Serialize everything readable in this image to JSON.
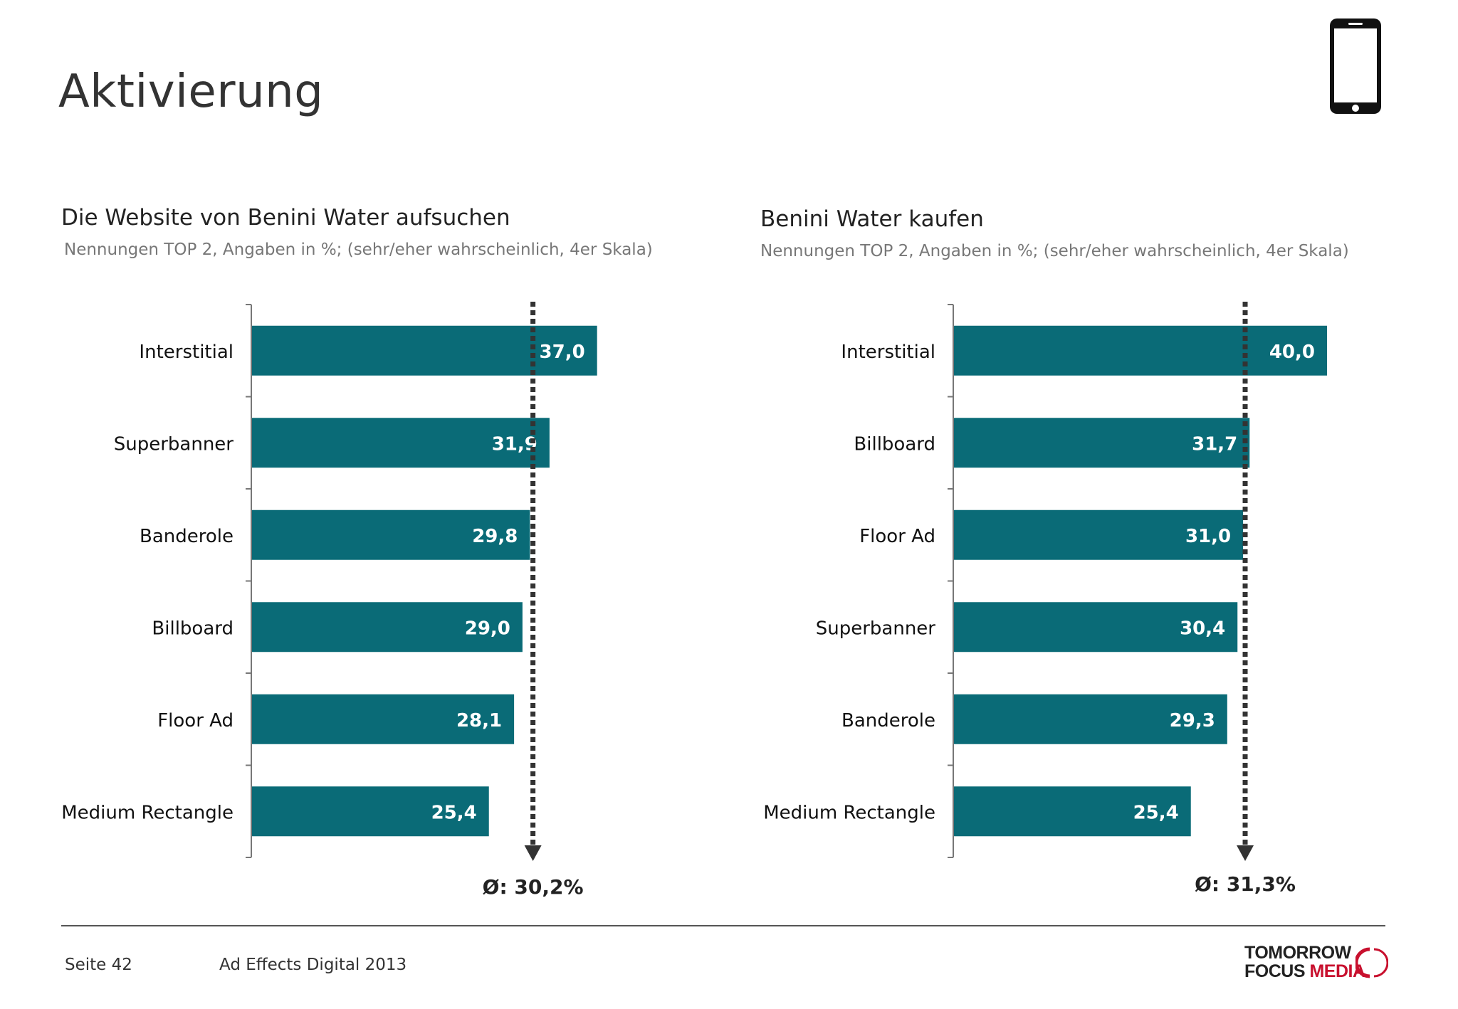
{
  "page": {
    "title": "Aktivierung",
    "icon": "smartphone-icon"
  },
  "footer": {
    "page_label": "Seite 42",
    "study": "Ad Effects Digital 2013",
    "logo_line1": "TOMORROW",
    "logo_focus": "FOCUS",
    "logo_media": "MEDIA"
  },
  "colors": {
    "bar": "#0a6b77",
    "accent": "#c8102e",
    "reference_line": "#333333"
  },
  "chart_data": [
    {
      "type": "bar",
      "orientation": "horizontal",
      "title": "Die Website von Benini Water aufsuchen",
      "subtitle": "Nennungen TOP 2, Angaben in %; (sehr/eher wahrscheinlich, 4er Skala)",
      "categories": [
        "Interstitial",
        "Superbanner",
        "Banderole",
        "Billboard",
        "Floor Ad",
        "Medium Rectangle"
      ],
      "values": [
        37.0,
        31.9,
        29.8,
        29.0,
        28.1,
        25.4
      ],
      "value_labels": [
        "37,0",
        "31,9",
        "29,8",
        "29,0",
        "28,1",
        "25,4"
      ],
      "average": 30.2,
      "average_label": "Ø: 30,2%",
      "xlim": [
        0,
        40
      ],
      "grid": false
    },
    {
      "type": "bar",
      "orientation": "horizontal",
      "title": "Benini Water kaufen",
      "subtitle": "Nennungen TOP 2, Angaben in %; (sehr/eher wahrscheinlich, 4er Skala)",
      "categories": [
        "Interstitial",
        "Billboard",
        "Floor Ad",
        "Superbanner",
        "Banderole",
        "Medium Rectangle"
      ],
      "values": [
        40.0,
        31.7,
        31.0,
        30.4,
        29.3,
        25.4
      ],
      "value_labels": [
        "40,0",
        "31,7",
        "31,0",
        "30,4",
        "29,3",
        "25,4"
      ],
      "average": 31.3,
      "average_label": "Ø: 31,3%",
      "xlim": [
        0,
        40
      ],
      "grid": false
    }
  ]
}
